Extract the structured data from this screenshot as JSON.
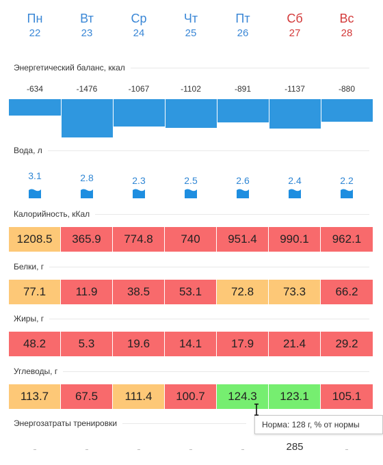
{
  "days": [
    {
      "name": "Пн",
      "date": "22",
      "weekend": false
    },
    {
      "name": "Вт",
      "date": "23",
      "weekend": false
    },
    {
      "name": "Ср",
      "date": "24",
      "weekend": false
    },
    {
      "name": "Чт",
      "date": "25",
      "weekend": false
    },
    {
      "name": "Пт",
      "date": "26",
      "weekend": false
    },
    {
      "name": "Сб",
      "date": "27",
      "weekend": true
    },
    {
      "name": "Вс",
      "date": "28",
      "weekend": true
    }
  ],
  "balance": {
    "title": "Энергетический баланс, ккал",
    "values": [
      "-634",
      "-1476",
      "-1067",
      "-1102",
      "-891",
      "-1137",
      "-880"
    ],
    "bar_color": "#2f97df"
  },
  "water": {
    "title": "Вода, л",
    "values": [
      "3.1",
      "2.8",
      "2.3",
      "2.5",
      "2.6",
      "2.4",
      "2.2"
    ],
    "icon": "water-glass-icon"
  },
  "calories": {
    "title": "Калорийность, кКал",
    "cells": [
      {
        "value": "1208.5",
        "status": "yellow"
      },
      {
        "value": "365.9",
        "status": "red"
      },
      {
        "value": "774.8",
        "status": "red"
      },
      {
        "value": "740",
        "status": "red"
      },
      {
        "value": "951.4",
        "status": "red"
      },
      {
        "value": "990.1",
        "status": "red"
      },
      {
        "value": "962.1",
        "status": "red"
      }
    ]
  },
  "proteins": {
    "title": "Белки, г",
    "cells": [
      {
        "value": "77.1",
        "status": "yellow"
      },
      {
        "value": "11.9",
        "status": "red"
      },
      {
        "value": "38.5",
        "status": "red"
      },
      {
        "value": "53.1",
        "status": "red"
      },
      {
        "value": "72.8",
        "status": "yellow"
      },
      {
        "value": "73.3",
        "status": "yellow"
      },
      {
        "value": "66.2",
        "status": "red"
      }
    ]
  },
  "fats": {
    "title": "Жиры, г",
    "cells": [
      {
        "value": "48.2",
        "status": "red"
      },
      {
        "value": "5.3",
        "status": "red"
      },
      {
        "value": "19.6",
        "status": "red"
      },
      {
        "value": "14.1",
        "status": "red"
      },
      {
        "value": "17.9",
        "status": "red"
      },
      {
        "value": "21.4",
        "status": "red"
      },
      {
        "value": "29.2",
        "status": "red"
      }
    ]
  },
  "carbs": {
    "title": "Углеводы, г",
    "cells": [
      {
        "value": "113.7",
        "status": "yellow"
      },
      {
        "value": "67.5",
        "status": "red"
      },
      {
        "value": "111.4",
        "status": "yellow"
      },
      {
        "value": "100.7",
        "status": "red"
      },
      {
        "value": "124.3",
        "status": "green"
      },
      {
        "value": "123.1",
        "status": "green"
      },
      {
        "value": "105.1",
        "status": "red"
      }
    ]
  },
  "training": {
    "title": "Энергозатраты тренировки",
    "values": [
      "",
      "",
      "",
      "",
      "",
      "285",
      ""
    ]
  },
  "tooltip": {
    "text": "Норма: 128 г, % от нормы"
  },
  "colors": {
    "red": "#f86a6c",
    "yellow": "#fdc877",
    "green": "#76ee70",
    "weekday": "#3a87d6",
    "weekend": "#d33a3a"
  }
}
